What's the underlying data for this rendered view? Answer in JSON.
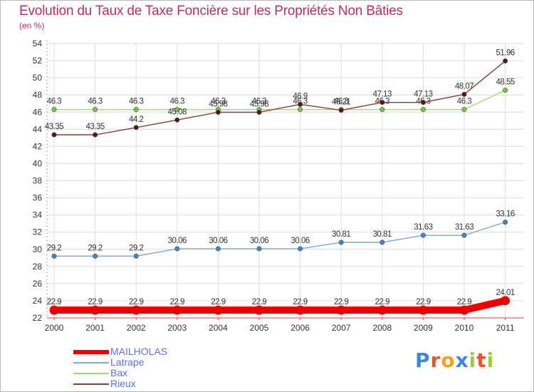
{
  "chart_data": {
    "type": "line",
    "title": "Evolution du Taux de Taxe Foncière sur les Propriétés Non Bâties",
    "unit_label": "(en %)",
    "x": [
      "2000",
      "2001",
      "2002",
      "2003",
      "2004",
      "2005",
      "2006",
      "2007",
      "2008",
      "2009",
      "2010",
      "2011"
    ],
    "ylim": [
      22,
      54
    ],
    "yticks": [
      22,
      24,
      26,
      28,
      30,
      32,
      34,
      36,
      38,
      40,
      42,
      44,
      46,
      48,
      50,
      52,
      54
    ],
    "grid": true,
    "series": [
      {
        "name": "MAILHOLAS",
        "color": "#ee0000",
        "marker": "#ee0000",
        "values": [
          22.9,
          22.9,
          22.9,
          22.9,
          22.9,
          22.9,
          22.9,
          22.9,
          22.9,
          22.9,
          22.9,
          24.01
        ],
        "labels": [
          "22.9",
          "22.9",
          "22.9",
          "22.9",
          "22.9",
          "22.9",
          "22.9",
          "22.9",
          "22.9",
          "22.9",
          "22.9",
          "24.01"
        ]
      },
      {
        "name": "Latrape",
        "color": "#7aa9d4",
        "marker": "#3e86c8",
        "values": [
          29.2,
          29.2,
          29.2,
          30.06,
          30.06,
          30.06,
          30.06,
          30.81,
          30.81,
          31.63,
          31.63,
          33.16
        ],
        "labels": [
          "29.2",
          "29.2",
          "29.2",
          "30.06",
          "30.06",
          "30.06",
          "30.06",
          "30.81",
          "30.81",
          "31.63",
          "31.63",
          "33.16"
        ]
      },
      {
        "name": "Bax",
        "color": "#9ede76",
        "marker": "#6fcb3a",
        "values": [
          46.3,
          46.3,
          46.3,
          46.3,
          46.3,
          46.3,
          46.3,
          46.3,
          46.3,
          46.3,
          46.3,
          48.55
        ],
        "labels": [
          "46.3",
          "46.3",
          "46.3",
          "46.3",
          "46.3",
          "46.3",
          "46.3",
          "46.3",
          "46.3",
          "46.3",
          "46.3",
          "48.55"
        ]
      },
      {
        "name": "Rieux",
        "color": "#8b3a3a",
        "marker": "#5a1414",
        "values": [
          43.35,
          43.35,
          44.2,
          45.08,
          45.98,
          45.98,
          46.9,
          46.21,
          47.13,
          47.13,
          48.07,
          51.96
        ],
        "labels": [
          "43.35",
          "43.35",
          "44.2",
          "45.08",
          "45.98",
          "45.98",
          "46.9",
          "46.21",
          "47.13",
          "47.13",
          "48.07",
          "51.96"
        ]
      }
    ]
  },
  "logo": {
    "text": "Proxiti",
    "letter_colors": [
      "#3a8ad8",
      "#e8542b",
      "#f2a21e",
      "#3a8ad8",
      "#9ccc3a",
      "#e8542b",
      "#9ccc3a"
    ]
  }
}
